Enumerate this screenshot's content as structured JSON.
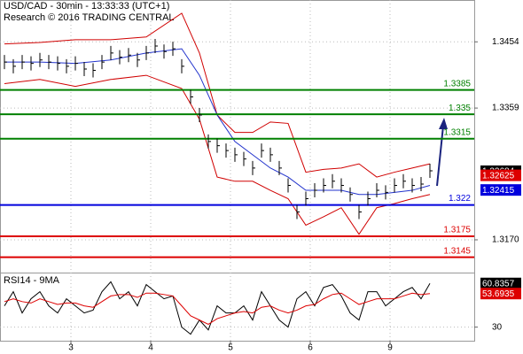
{
  "chart_data": [
    {
      "type": "stock",
      "title": "USD/CAD - 30min - 13:33:33 (UTC+1)",
      "subtitle": "Research © 2016 TRADING CENTRAL",
      "color": "#000000",
      "values": [
        1.3425,
        1.3419,
        1.3425,
        1.3423,
        1.3428,
        1.3425,
        1.3423,
        1.3419,
        1.3423,
        1.3415,
        1.3413,
        1.3425,
        1.3438,
        1.3432,
        1.3435,
        1.3428,
        1.3438,
        1.3448,
        1.344,
        1.3444,
        1.3419,
        1.3375,
        1.3349,
        1.3311,
        1.3305,
        1.3298,
        1.3292,
        1.3286,
        1.3273,
        1.3298,
        1.3292,
        1.3273,
        1.3248,
        1.321,
        1.3229,
        1.3241,
        1.3248,
        1.3254,
        1.3248,
        1.3235,
        1.321,
        1.3229,
        1.3241,
        1.3238,
        1.3248,
        1.3254,
        1.3248,
        1.325,
        1.3269
      ],
      "bands": {
        "x": [
          0,
          4,
          8,
          12,
          16,
          20,
          22,
          24,
          26,
          28,
          30,
          32,
          34,
          36,
          38,
          40,
          42,
          44,
          46,
          48
        ],
        "upper": [
          1.3451,
          1.3453,
          1.3457,
          1.3457,
          1.3461,
          1.3495,
          1.3438,
          1.3349,
          1.3324,
          1.3324,
          1.3339,
          1.3337,
          1.3267,
          1.3271,
          1.3273,
          1.3279,
          1.326,
          1.3267,
          1.3273,
          1.3279
        ],
        "lower": [
          1.3394,
          1.34,
          1.339,
          1.34,
          1.3406,
          1.3387,
          1.3343,
          1.326,
          1.3254,
          1.3254,
          1.3241,
          1.3229,
          1.3191,
          1.3203,
          1.3216,
          1.3178,
          1.3216,
          1.3222,
          1.3229,
          1.3235
        ],
        "middle": [
          1.3425,
          1.3425,
          1.3423,
          1.3428,
          1.3438,
          1.3444,
          1.3406,
          1.3349,
          1.3311,
          1.3292,
          1.3273,
          1.326,
          1.3241,
          1.3241,
          1.3241,
          1.3235,
          1.3235,
          1.3238,
          1.3241,
          1.3248
        ],
        "band_color": "#d00000",
        "middle_color": "#2233cc"
      },
      "levels": [
        {
          "value": 1.3385,
          "color": "#008000"
        },
        {
          "value": 1.335,
          "color": "#008000"
        },
        {
          "value": 1.3315,
          "color": "#008000"
        },
        {
          "value": 1.322,
          "color": "#0000dd"
        },
        {
          "value": 1.3175,
          "color": "#dd0000"
        },
        {
          "value": 1.3145,
          "color": "#dd0000"
        }
      ],
      "price_labels": [
        {
          "value": 1.32684,
          "color": "#000000"
        },
        {
          "value": 1.32625,
          "color": "#dd0000"
        },
        {
          "value": 1.32415,
          "color": "#0000dd"
        }
      ],
      "xlim": [
        -0.5,
        53
      ],
      "xticks": [
        {
          "value": 7.5,
          "label": "3"
        },
        {
          "value": 16.5,
          "label": "4"
        },
        {
          "value": 25.5,
          "label": "5"
        },
        {
          "value": 34.5,
          "label": "6"
        },
        {
          "value": 43.5,
          "label": "9"
        }
      ],
      "ylim": [
        1.3123,
        1.3514
      ],
      "yticks": [
        {
          "value": 1.317,
          "label": "1.3170"
        },
        1.3359,
        1.3454
      ],
      "grid": true
    },
    {
      "type": "line",
      "title": "RSI14 - 9MA",
      "series": [
        {
          "color": "#000000",
          "values": [
            45,
            55,
            40,
            50,
            55,
            45,
            40,
            50,
            45,
            40,
            42,
            55,
            62,
            50,
            55,
            45,
            60,
            55,
            50,
            52,
            30,
            25,
            35,
            28,
            45,
            40,
            40,
            45,
            35,
            55,
            45,
            35,
            30,
            50,
            55,
            45,
            58,
            60,
            52,
            40,
            35,
            55,
            55,
            45,
            50,
            55,
            58,
            50,
            60.8357
          ]
        },
        {
          "color": "#dd0000",
          "values": [
            48,
            50,
            48,
            47,
            50,
            48,
            46,
            47,
            47,
            45,
            44,
            48,
            52,
            53,
            53,
            51,
            54,
            54,
            53,
            52,
            45,
            38,
            35,
            32,
            36,
            38,
            40,
            41,
            40,
            44,
            45,
            42,
            40,
            42,
            45,
            46,
            50,
            53,
            54,
            50,
            46,
            48,
            50,
            50,
            50,
            52,
            54,
            53,
            53.6935
          ]
        }
      ],
      "xlim": [
        -0.5,
        53
      ],
      "ylim": [
        20.4,
        68.5
      ],
      "yticks": [
        30
      ],
      "grid": true
    }
  ]
}
